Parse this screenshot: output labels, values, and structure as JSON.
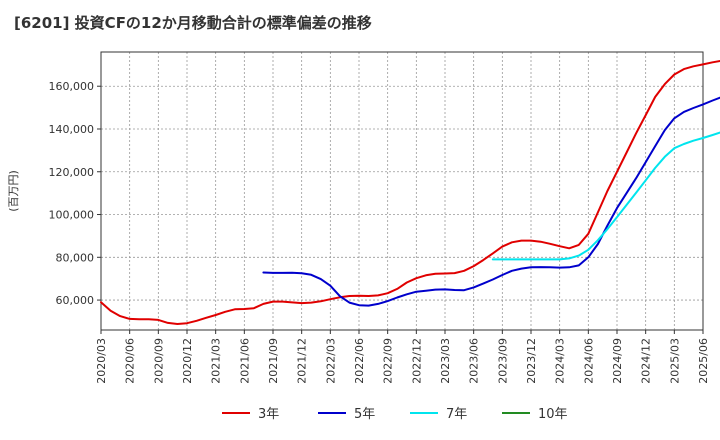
{
  "title": "[6201]  投資CFの12か月移動合計の標準偏差の推移",
  "chart_data": {
    "type": "line",
    "title": "[6201]  投資CFの12か月移動合計の標準偏差の推移",
    "xlabel": "",
    "ylabel": "(百万円)",
    "x_ticks": [
      "2020/03",
      "2020/06",
      "2020/09",
      "2020/12",
      "2021/03",
      "2021/06",
      "2021/09",
      "2021/12",
      "2022/03",
      "2022/06",
      "2022/09",
      "2022/12",
      "2023/03",
      "2023/06",
      "2023/09",
      "2023/12",
      "2024/03",
      "2024/06",
      "2024/09",
      "2024/12",
      "2025/03",
      "2025/06"
    ],
    "y_ticks": [
      "60,000",
      "80,000",
      "100,000",
      "120,000",
      "140,000",
      "160,000"
    ],
    "ylim": [
      46000,
      176000
    ],
    "grid": true,
    "legend_position": "bottom",
    "series": [
      {
        "name": "3年",
        "color": "#e00000",
        "points": [
          [
            "2020/03",
            59000
          ],
          [
            "2020/04",
            55000
          ],
          [
            "2020/05",
            52500
          ],
          [
            "2020/06",
            51200
          ],
          [
            "2020/07",
            51000
          ],
          [
            "2020/08",
            51000
          ],
          [
            "2020/09",
            50700
          ],
          [
            "2020/10",
            49300
          ],
          [
            "2020/11",
            48800
          ],
          [
            "2020/12",
            49200
          ],
          [
            "2021/01",
            50300
          ],
          [
            "2021/02",
            51700
          ],
          [
            "2021/03",
            53000
          ],
          [
            "2021/04",
            54500
          ],
          [
            "2021/05",
            55700
          ],
          [
            "2021/06",
            55800
          ],
          [
            "2021/07",
            56200
          ],
          [
            "2021/08",
            58200
          ],
          [
            "2021/09",
            59300
          ],
          [
            "2021/10",
            59300
          ],
          [
            "2021/11",
            58900
          ],
          [
            "2021/12",
            58600
          ],
          [
            "2022/01",
            58800
          ],
          [
            "2022/02",
            59400
          ],
          [
            "2022/03",
            60400
          ],
          [
            "2022/04",
            61300
          ],
          [
            "2022/05",
            61900
          ],
          [
            "2022/06",
            62000
          ],
          [
            "2022/07",
            61900
          ],
          [
            "2022/08",
            62200
          ],
          [
            "2022/09",
            63200
          ],
          [
            "2022/10",
            65200
          ],
          [
            "2022/11",
            68200
          ],
          [
            "2022/12",
            70200
          ],
          [
            "2023/01",
            71600
          ],
          [
            "2023/02",
            72300
          ],
          [
            "2023/03",
            72400
          ],
          [
            "2023/04",
            72600
          ],
          [
            "2023/05",
            73700
          ],
          [
            "2023/06",
            75900
          ],
          [
            "2023/07",
            78700
          ],
          [
            "2023/08",
            81800
          ],
          [
            "2023/09",
            85000
          ],
          [
            "2023/10",
            87000
          ],
          [
            "2023/11",
            87800
          ],
          [
            "2023/12",
            87800
          ],
          [
            "2024/01",
            87300
          ],
          [
            "2024/02",
            86300
          ],
          [
            "2024/03",
            85200
          ],
          [
            "2024/04",
            84200
          ],
          [
            "2024/05",
            85800
          ],
          [
            "2024/06",
            91000
          ],
          [
            "2024/07",
            101000
          ],
          [
            "2024/08",
            111000
          ],
          [
            "2024/09",
            120000
          ],
          [
            "2024/10",
            129000
          ],
          [
            "2024/11",
            138000
          ],
          [
            "2024/12",
            146500
          ],
          [
            "2025/01",
            155000
          ],
          [
            "2025/02",
            161000
          ],
          [
            "2025/03",
            165500
          ],
          [
            "2025/04",
            168000
          ],
          [
            "2025/05",
            169300
          ],
          [
            "2025/06",
            170200
          ],
          [
            "2025/07",
            171200
          ],
          [
            "2025/08",
            172000
          ]
        ]
      },
      {
        "name": "5年",
        "color": "#0000cc",
        "points": [
          [
            "2021/08",
            72900
          ],
          [
            "2021/09",
            72700
          ],
          [
            "2021/10",
            72700
          ],
          [
            "2021/11",
            72800
          ],
          [
            "2021/12",
            72500
          ],
          [
            "2022/01",
            71800
          ],
          [
            "2022/02",
            69800
          ],
          [
            "2022/03",
            66700
          ],
          [
            "2022/04",
            61800
          ],
          [
            "2022/05",
            58800
          ],
          [
            "2022/06",
            57600
          ],
          [
            "2022/07",
            57400
          ],
          [
            "2022/08",
            58200
          ],
          [
            "2022/09",
            59500
          ],
          [
            "2022/10",
            61200
          ],
          [
            "2022/11",
            62700
          ],
          [
            "2022/12",
            63900
          ],
          [
            "2023/01",
            64400
          ],
          [
            "2023/02",
            64900
          ],
          [
            "2023/03",
            65000
          ],
          [
            "2023/04",
            64700
          ],
          [
            "2023/05",
            64600
          ],
          [
            "2023/06",
            65900
          ],
          [
            "2023/07",
            67700
          ],
          [
            "2023/08",
            69600
          ],
          [
            "2023/09",
            71700
          ],
          [
            "2023/10",
            73700
          ],
          [
            "2023/11",
            74700
          ],
          [
            "2023/12",
            75300
          ],
          [
            "2024/01",
            75400
          ],
          [
            "2024/02",
            75300
          ],
          [
            "2024/03",
            75200
          ],
          [
            "2024/04",
            75300
          ],
          [
            "2024/05",
            76200
          ],
          [
            "2024/06",
            80000
          ],
          [
            "2024/07",
            86200
          ],
          [
            "2024/08",
            94800
          ],
          [
            "2024/09",
            103000
          ],
          [
            "2024/10",
            110000
          ],
          [
            "2024/11",
            117000
          ],
          [
            "2024/12",
            124500
          ],
          [
            "2025/01",
            132000
          ],
          [
            "2025/02",
            139500
          ],
          [
            "2025/03",
            145000
          ],
          [
            "2025/04",
            148000
          ],
          [
            "2025/05",
            149800
          ],
          [
            "2025/06",
            151500
          ],
          [
            "2025/07",
            153300
          ],
          [
            "2025/08",
            155000
          ]
        ]
      },
      {
        "name": "7年",
        "color": "#00e5ee",
        "points": [
          [
            "2023/08",
            79000
          ],
          [
            "2023/09",
            79000
          ],
          [
            "2023/10",
            79000
          ],
          [
            "2023/11",
            79000
          ],
          [
            "2023/12",
            79000
          ],
          [
            "2024/01",
            79000
          ],
          [
            "2024/02",
            79000
          ],
          [
            "2024/03",
            79000
          ],
          [
            "2024/04",
            79500
          ],
          [
            "2024/05",
            80800
          ],
          [
            "2024/06",
            83500
          ],
          [
            "2024/07",
            88000
          ],
          [
            "2024/08",
            93200
          ],
          [
            "2024/09",
            98800
          ],
          [
            "2024/10",
            104500
          ],
          [
            "2024/11",
            110200
          ],
          [
            "2024/12",
            116000
          ],
          [
            "2025/01",
            121800
          ],
          [
            "2025/02",
            127000
          ],
          [
            "2025/03",
            131000
          ],
          [
            "2025/04",
            133000
          ],
          [
            "2025/05",
            134500
          ],
          [
            "2025/06",
            135800
          ],
          [
            "2025/07",
            137200
          ],
          [
            "2025/08",
            138700
          ]
        ]
      },
      {
        "name": "10年",
        "color": "#228b22",
        "points": []
      }
    ]
  }
}
